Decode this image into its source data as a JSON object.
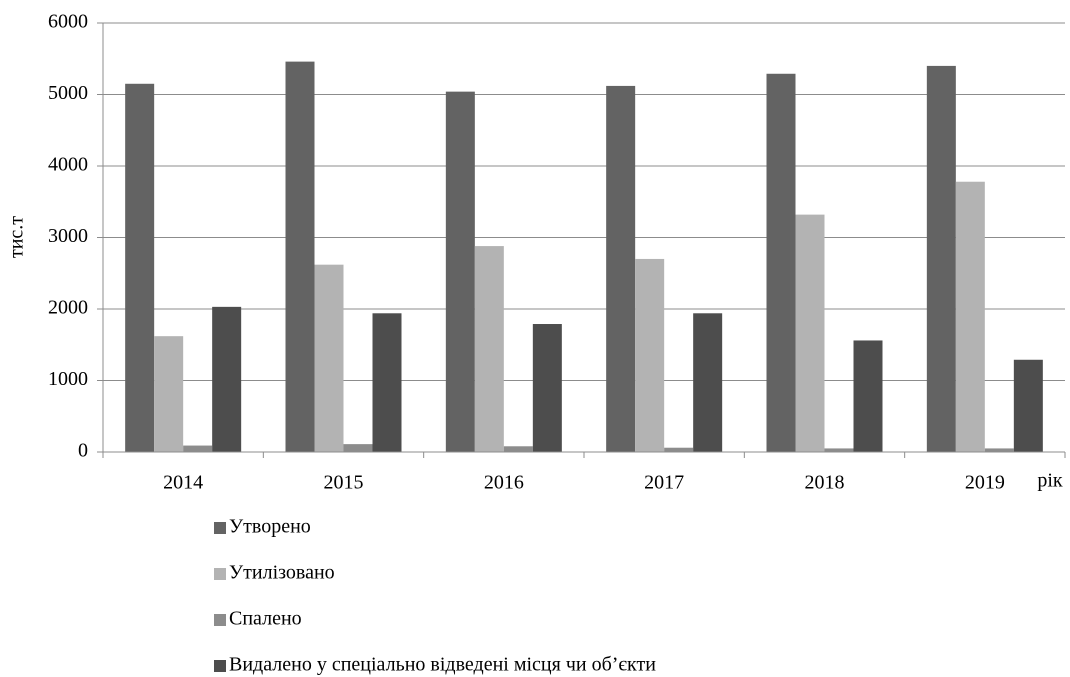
{
  "chart_data": {
    "type": "bar",
    "y_label": "тис.т",
    "x_label": "рік",
    "categories": [
      "2014",
      "2015",
      "2016",
      "2017",
      "2018",
      "2019"
    ],
    "series": [
      {
        "name": "Утворено",
        "color": "#636363",
        "values": [
          5150,
          5460,
          5040,
          5120,
          5290,
          5400
        ]
      },
      {
        "name": "Утилізовано",
        "color": "#b3b3b3",
        "values": [
          1620,
          2620,
          2880,
          2700,
          3320,
          3780
        ]
      },
      {
        "name": "Спалено",
        "color": "#8c8c8c",
        "values": [
          90,
          110,
          80,
          60,
          50,
          50
        ]
      },
      {
        "name": "Видалено у спеціально відведені місця чи об’єкти",
        "color": "#4d4d4d",
        "values": [
          2030,
          1940,
          1790,
          1940,
          1560,
          1290
        ]
      }
    ],
    "ylim": [
      0,
      6000
    ],
    "yticks": [
      0,
      1000,
      2000,
      3000,
      4000,
      5000,
      6000
    ],
    "grid": true,
    "legend": "bottom"
  }
}
